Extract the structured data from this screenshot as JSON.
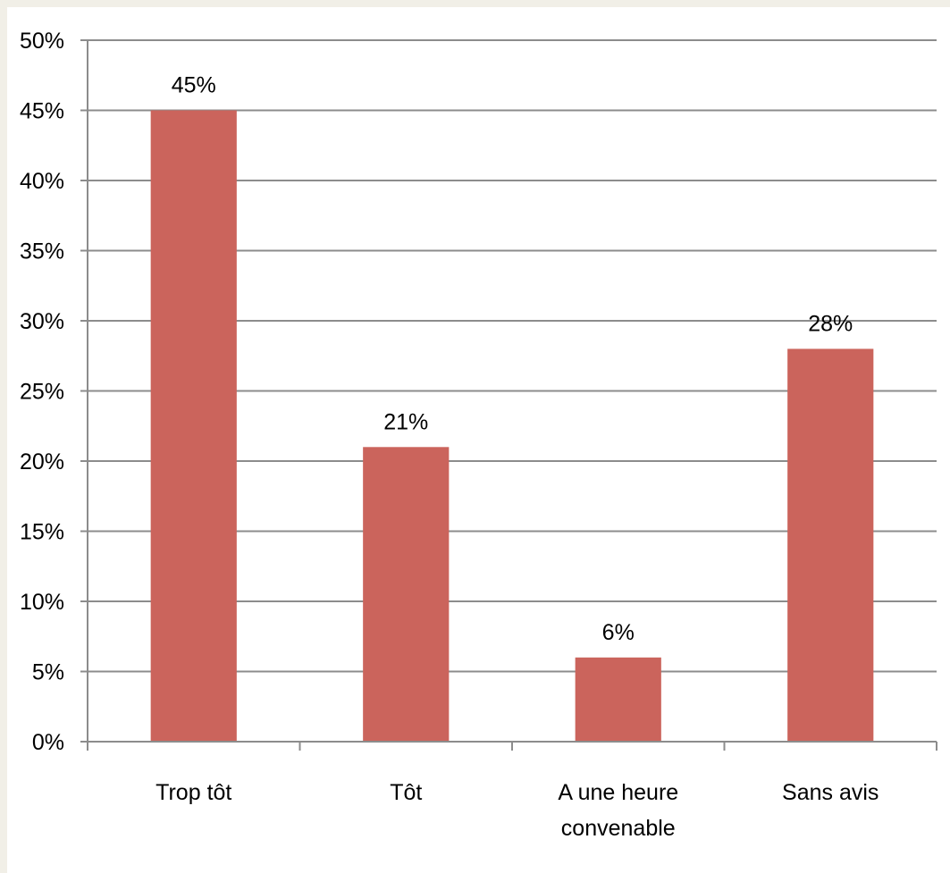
{
  "chart_data": {
    "type": "bar",
    "categories": [
      [
        "Trop tôt"
      ],
      [
        "Tôt"
      ],
      [
        "A une heure",
        "convenable"
      ],
      [
        "Sans avis"
      ]
    ],
    "values": [
      45,
      21,
      6,
      28
    ],
    "data_labels": [
      "45%",
      "21%",
      "6%",
      "28%"
    ],
    "ylim": [
      0,
      50
    ],
    "ytick_step": 5,
    "ytick_labels": [
      "0%",
      "5%",
      "10%",
      "15%",
      "20%",
      "25%",
      "30%",
      "35%",
      "40%",
      "45%",
      "50%"
    ],
    "grid": true,
    "legend": "none",
    "colors": {
      "bar": "#cb645c",
      "grid": "#8c8c8c",
      "axis": "#8c8c8c",
      "background": "#ffffff",
      "border": "#f1efe7"
    }
  }
}
